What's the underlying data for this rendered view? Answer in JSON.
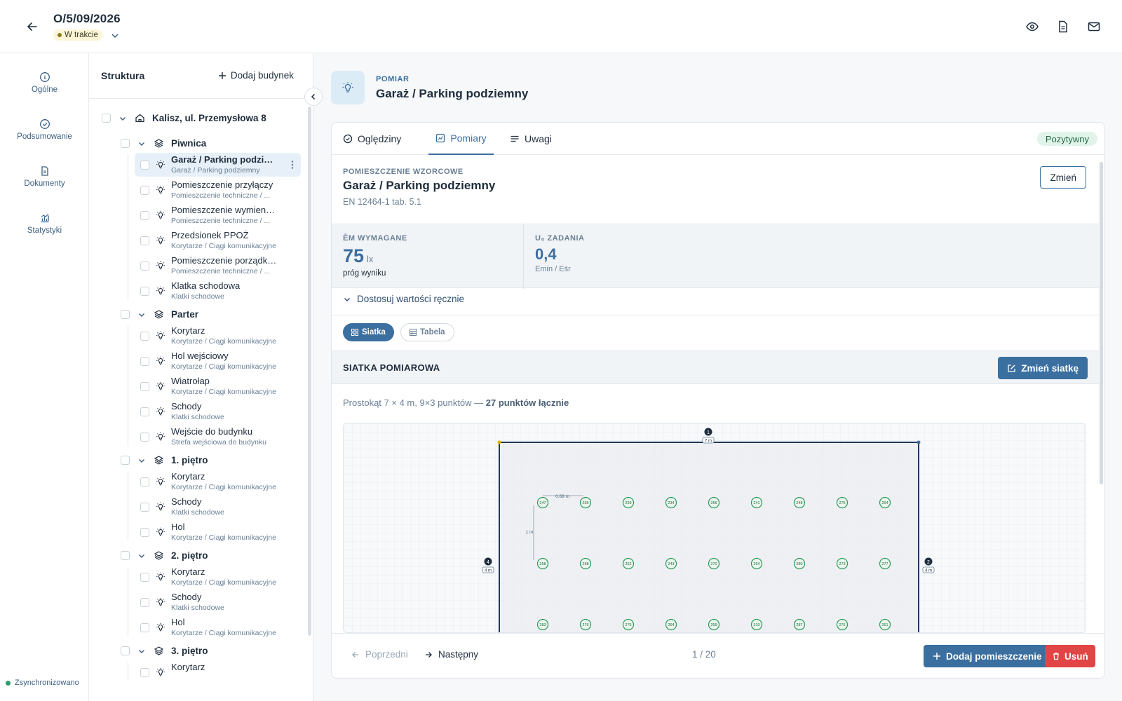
{
  "header": {
    "title": "O/5/09/2026",
    "status": "W trakcie"
  },
  "nav": {
    "items": [
      {
        "label": "Ogólne",
        "icon": "info-icon"
      },
      {
        "label": "Podsumowanie",
        "icon": "check-circle-icon"
      },
      {
        "label": "Dokumenty",
        "icon": "document-icon"
      },
      {
        "label": "Statystyki",
        "icon": "chart-icon"
      }
    ],
    "sync": "Zsynchronizowano"
  },
  "tree": {
    "title": "Struktura",
    "add_building": "Dodaj budynek",
    "building": "Kalisz, ul. Przemysłowa 8",
    "levels": [
      {
        "name": "Piwnica",
        "rooms": [
          {
            "name": "Garaż / Parking podziemny",
            "sub": "Garaż / Parking podziemny"
          },
          {
            "name": "Pomieszczenie przyłączy",
            "sub": "Pomieszczenie techniczne / ..."
          },
          {
            "name": "Pomieszczenie wymiennika",
            "sub": "Pomieszczenie techniczne / ..."
          },
          {
            "name": "Przedsionek PPOŻ",
            "sub": "Korytarze / Ciągi komunikacyjne"
          },
          {
            "name": "Pomieszczenie porządkowe",
            "sub": "Pomieszczenie techniczne / ..."
          },
          {
            "name": "Klatka schodowa",
            "sub": "Klatki schodowe"
          }
        ]
      },
      {
        "name": "Parter",
        "rooms": [
          {
            "name": "Korytarz",
            "sub": "Korytarze / Ciągi komunikacyjne"
          },
          {
            "name": "Hol wejściowy",
            "sub": "Korytarze / Ciągi komunikacyjne"
          },
          {
            "name": "Wiatrołap",
            "sub": "Korytarze / Ciągi komunikacyjne"
          },
          {
            "name": "Schody",
            "sub": "Klatki schodowe"
          },
          {
            "name": "Wejście do budynku",
            "sub": "Strefa wejściowa do budynku"
          }
        ]
      },
      {
        "name": "1. piętro",
        "rooms": [
          {
            "name": "Korytarz",
            "sub": "Korytarze / Ciągi komunikacyjne"
          },
          {
            "name": "Schody",
            "sub": "Klatki schodowe"
          },
          {
            "name": "Hol",
            "sub": "Korytarze / Ciągi komunikacyjne"
          }
        ]
      },
      {
        "name": "2. piętro",
        "rooms": [
          {
            "name": "Korytarz",
            "sub": "Korytarze / Ciągi komunikacyjne"
          },
          {
            "name": "Schody",
            "sub": "Klatki schodowe"
          },
          {
            "name": "Hol",
            "sub": "Korytarze / Ciągi komunikacyjne"
          }
        ]
      },
      {
        "name": "3. piętro",
        "rooms": [
          {
            "name": "Korytarz",
            "sub": ""
          }
        ]
      }
    ]
  },
  "main": {
    "kicker": "POMIAR",
    "title": "Garaż / Parking podziemny",
    "tabs": [
      "Oględziny",
      "Pomiary",
      "Uwagi"
    ],
    "result": "Pozytywny",
    "room_label": "POMIESZCZENIE WZORCOWE",
    "room_name": "Garaż / Parking podziemny",
    "norm": "EN 12464-1 tab. 5.1",
    "change": "Zmień",
    "em_label": "ĒM WYMAGANE",
    "em_value": "75",
    "em_unit": "lx",
    "em_sub": "próg wyniku",
    "u0_label": "U₀ ZADANIA",
    "u0_value": "0,4",
    "u0_sub": "Emin / Eśr",
    "adjust": "Dostosuj wartości ręcznie",
    "seg": [
      "Siatka",
      "Tabela"
    ],
    "grid_title": "SIATKA POMIAROWA",
    "change_grid": "Zmień siatkę",
    "grid_desc": "Prostokąt 7 × 4 m, 9×3 punktów — ",
    "grid_total": "27 punktów łącznie",
    "dim": {
      "top": "7 m",
      "left": "4 m",
      "right": "4 m",
      "spacing_x": "0.69 m",
      "spacing_y": "1 m"
    },
    "points": [
      [
        "247",
        "255",
        "259",
        "234",
        "256",
        "241",
        "248",
        "275",
        "264"
      ],
      [
        "258",
        "268",
        "252",
        "243",
        "270",
        "264",
        "280",
        "273",
        "277"
      ],
      [
        "283",
        "276",
        "275",
        "264",
        "259",
        "310",
        "287",
        "276",
        "261"
      ]
    ],
    "prev": "Poprzedni",
    "next": "Następny",
    "page": "1 / 20",
    "add_room": "Dodaj pomieszczenie",
    "delete": "Usuń"
  }
}
